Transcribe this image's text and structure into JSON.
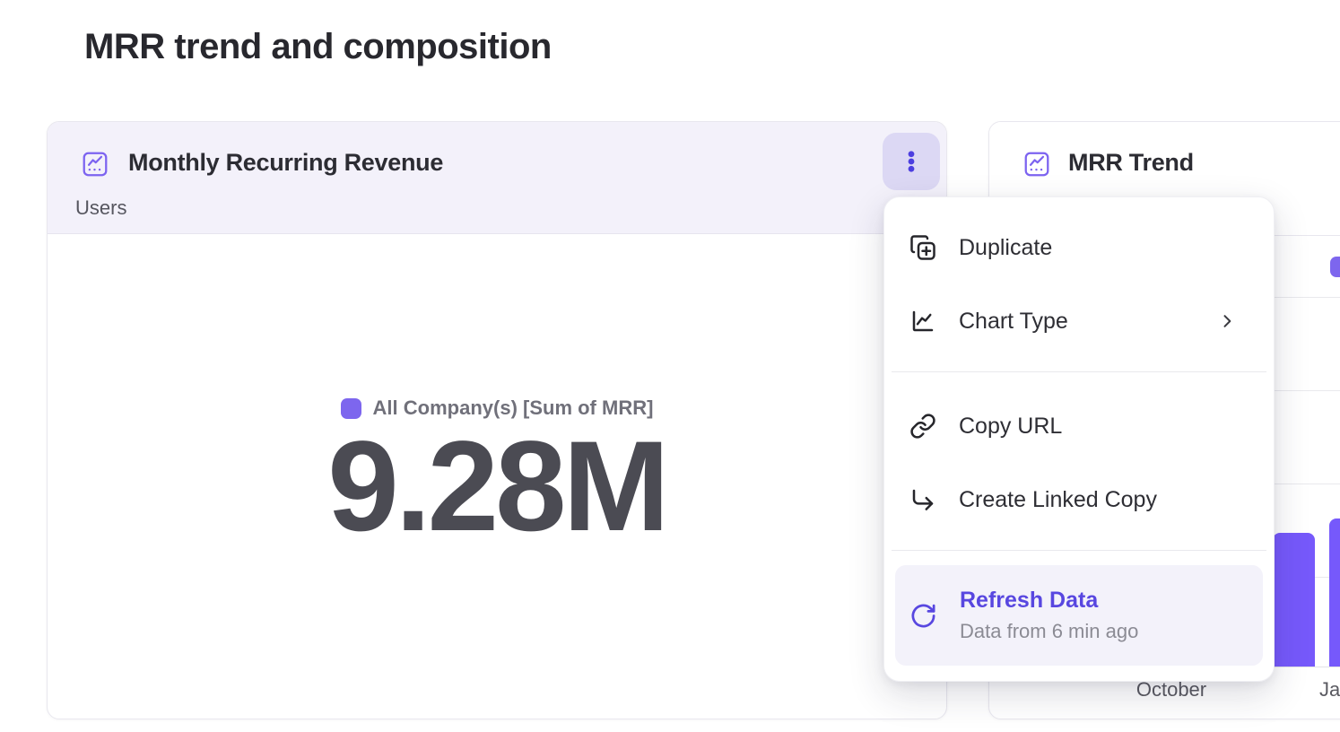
{
  "page": {
    "title": "MRR trend and composition"
  },
  "mrr_card": {
    "title": "Monthly Recurring Revenue",
    "subtitle": "Users",
    "legend": "All Company(s) [Sum of MRR]",
    "value": "9.28M"
  },
  "trend_card": {
    "title": "MRR Trend",
    "x_labels": [
      "October",
      "Ja"
    ]
  },
  "menu": {
    "items": [
      {
        "label": "Duplicate"
      },
      {
        "label": "Chart Type",
        "has_submenu": true
      },
      {
        "label": "Copy URL"
      },
      {
        "label": "Create Linked Copy"
      },
      {
        "label": "Refresh Data",
        "sublabel": "Data from 6 min ago",
        "active": true
      }
    ]
  },
  "chart_data": [
    {
      "type": "metric",
      "title": "Monthly Recurring Revenue",
      "subtitle": "Users",
      "series": [
        "All Company(s) [Sum of MRR]"
      ],
      "value": "9.28M",
      "legend_position": "top-center"
    },
    {
      "type": "bar",
      "title": "MRR Trend",
      "visible_categories": [
        "October",
        "Ja"
      ],
      "visible_bar_heights_fraction_of_plot": [
        0.362,
        0.4
      ],
      "gridline_count": 5,
      "bar_color": "#7659fb",
      "note": "chart mostly occluded by open context menu; no y-axis labels visible"
    }
  ],
  "colors": {
    "accent_bar_purple": "#7659fb",
    "legend_swatch_purple": "#7d66ee",
    "refresh_text_purple": "#5847e0",
    "kebab_dots_purple": "#4c3ee0",
    "kebab_button_bg": "#dcd8f4",
    "card_header_bg": "#f3f1fa",
    "refresh_item_bg": "#f3f2fa",
    "title_text": "#28282e",
    "metric_value_text": "#4b4b53"
  }
}
